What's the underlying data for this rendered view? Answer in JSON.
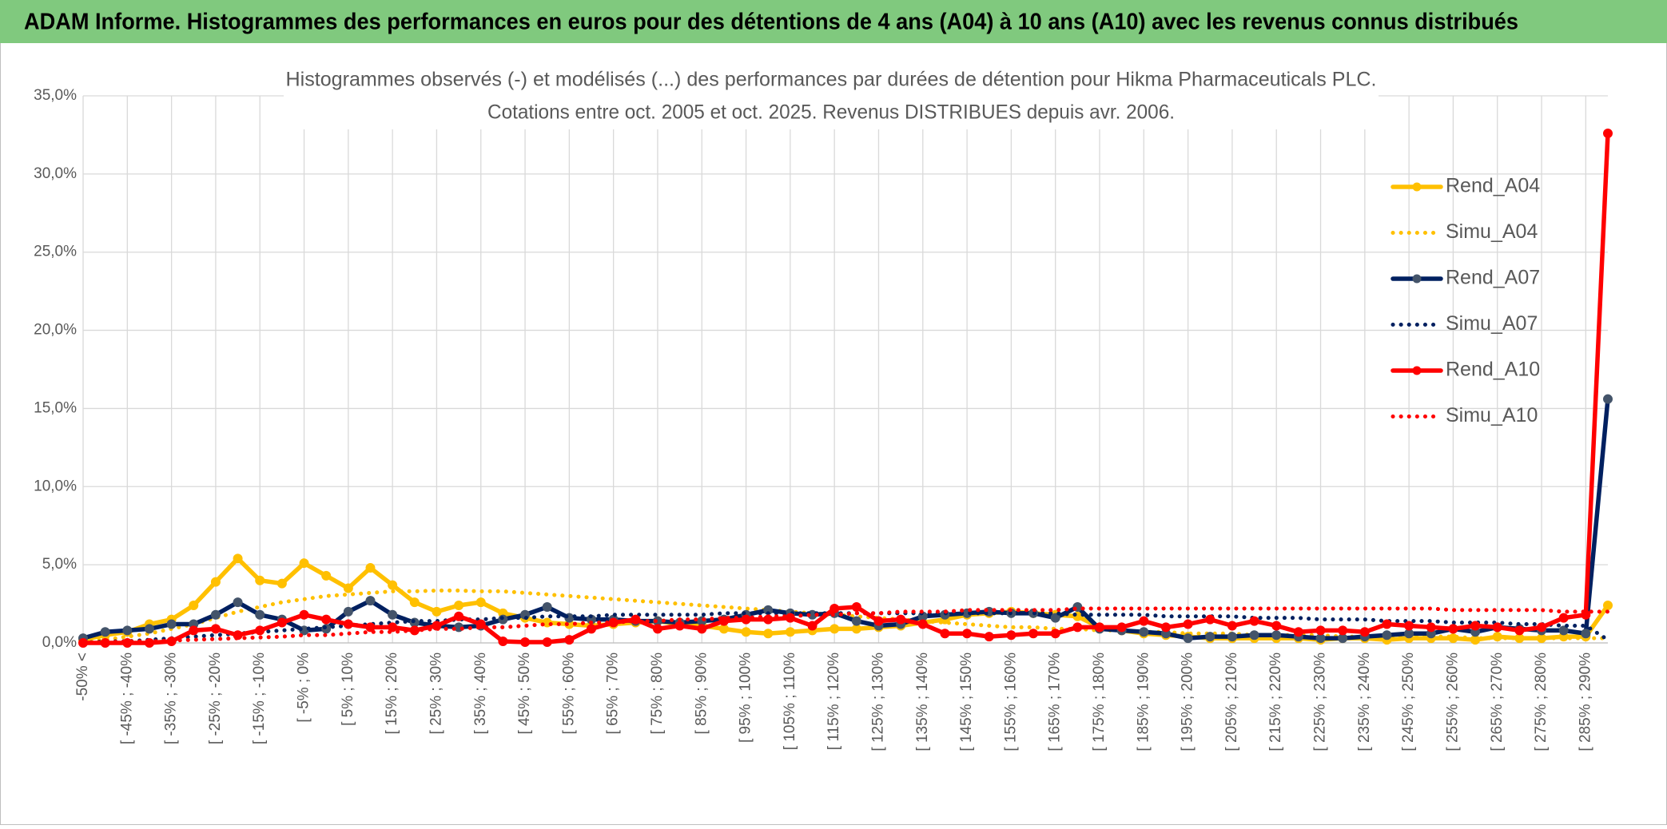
{
  "header": {
    "title": "ADAM Informe. Histogrammes des performances en euros pour des détentions de 4 ans (A04) à 10 ans (A10) avec les revenus connus distribués"
  },
  "chart_data": {
    "type": "line",
    "title": "Histogrammes observés (-) et modélisés (...) des performances par durées de détention pour Hikma Pharmaceuticals PLC.",
    "subtitle": "Cotations entre oct. 2005 et oct. 2025. Revenus DISTRIBUES depuis avr. 2006.",
    "categories": [
      "-50% <",
      null,
      "[ -45% ; -40%",
      null,
      "[ -35% ; -30%",
      null,
      "[ -25% ; -20%",
      null,
      "[ -15% ; -10%",
      null,
      "[ -5% ; 0%",
      null,
      "[ 5% ; 10%",
      null,
      "[ 15% ; 20%",
      null,
      "[ 25% ; 30%",
      null,
      "[ 35% ; 40%",
      null,
      "[ 45% ; 50%",
      null,
      "[ 55% ; 60%",
      null,
      "[ 65% ; 70%",
      null,
      "[ 75% ; 80%",
      null,
      "[ 85% ; 90%",
      null,
      "[ 95% ; 100%",
      null,
      "[ 105% ; 110%",
      null,
      "[ 115% ; 120%",
      null,
      "[ 125% ; 130%",
      null,
      "[ 135% ; 140%",
      null,
      "[ 145% ; 150%",
      null,
      "[ 155% ; 160%",
      null,
      "[ 165% ; 170%",
      null,
      "[ 175% ; 180%",
      null,
      "[ 185% ; 190%",
      null,
      "[ 195% ; 200%",
      null,
      "[ 205% ; 210%",
      null,
      "[ 215% ; 220%",
      null,
      "[ 225% ; 230%",
      null,
      "[ 235% ; 240%",
      null,
      "[ 245% ; 250%",
      null,
      "[ 255% ; 260%",
      null,
      "[ 265% ; 270%",
      null,
      "[ 275% ; 280%",
      null,
      "[ 285% ; 290%",
      null
    ],
    "series": [
      {
        "name": "Rend_A04",
        "color": "#FFC000",
        "marker_color": "#FFC000",
        "style": "solid",
        "marker": true,
        "values": [
          0.2,
          0.5,
          0.7,
          1.2,
          1.5,
          2.4,
          3.9,
          5.4,
          4.0,
          3.8,
          5.1,
          4.3,
          3.5,
          4.8,
          3.7,
          2.6,
          2.0,
          2.4,
          2.6,
          1.9,
          1.6,
          1.3,
          1.2,
          1.1,
          1.2,
          1.3,
          1.4,
          1.2,
          1.1,
          0.9,
          0.7,
          0.6,
          0.7,
          0.8,
          0.9,
          0.9,
          1.0,
          1.1,
          1.3,
          1.5,
          1.8,
          1.9,
          2.0,
          1.9,
          1.8,
          1.7,
          1.0,
          0.8,
          0.6,
          0.5,
          0.4,
          0.3,
          0.3,
          0.3,
          0.3,
          0.3,
          0.2,
          0.3,
          0.3,
          0.2,
          0.3,
          0.3,
          0.3,
          0.2,
          0.4,
          0.3,
          0.3,
          0.4,
          0.4,
          2.4
        ]
      },
      {
        "name": "Simu_A04",
        "color": "#FFC000",
        "style": "dotted",
        "marker": false,
        "values": [
          0.1,
          0.2,
          0.4,
          0.6,
          0.9,
          1.2,
          1.6,
          2.0,
          2.3,
          2.6,
          2.8,
          3.0,
          3.1,
          3.2,
          3.3,
          3.3,
          3.35,
          3.35,
          3.3,
          3.3,
          3.2,
          3.1,
          3.0,
          2.9,
          2.8,
          2.7,
          2.6,
          2.5,
          2.4,
          2.3,
          2.2,
          2.1,
          2.0,
          1.9,
          1.8,
          1.7,
          1.6,
          1.5,
          1.4,
          1.3,
          1.2,
          1.1,
          1.0,
          1.0,
          0.9,
          0.9,
          0.8,
          0.8,
          0.7,
          0.7,
          0.6,
          0.6,
          0.6,
          0.5,
          0.5,
          0.5,
          0.5,
          0.4,
          0.4,
          0.4,
          0.4,
          0.4,
          0.4,
          0.3,
          0.3,
          0.3,
          0.3,
          0.3,
          0.3,
          0.3
        ]
      },
      {
        "name": "Rend_A07",
        "color": "#002060",
        "marker_color": "#44546A",
        "style": "solid",
        "marker": true,
        "values": [
          0.3,
          0.7,
          0.8,
          0.9,
          1.2,
          1.2,
          1.8,
          2.6,
          1.8,
          1.5,
          0.8,
          0.9,
          2.0,
          2.7,
          1.8,
          1.3,
          1.1,
          1.0,
          1.1,
          1.5,
          1.8,
          2.3,
          1.6,
          1.5,
          1.5,
          1.4,
          1.4,
          1.3,
          1.4,
          1.5,
          1.8,
          2.1,
          1.9,
          1.8,
          1.9,
          1.4,
          1.1,
          1.2,
          1.7,
          1.8,
          1.9,
          2.0,
          1.9,
          1.9,
          1.6,
          2.3,
          0.9,
          0.8,
          0.7,
          0.6,
          0.3,
          0.4,
          0.4,
          0.5,
          0.5,
          0.4,
          0.3,
          0.3,
          0.4,
          0.5,
          0.6,
          0.6,
          0.9,
          0.7,
          1.0,
          0.9,
          0.8,
          0.8,
          0.6,
          15.6
        ]
      },
      {
        "name": "Simu_A07",
        "color": "#002060",
        "style": "dotted",
        "marker": false,
        "values": [
          0.0,
          0.1,
          0.1,
          0.2,
          0.3,
          0.4,
          0.5,
          0.6,
          0.7,
          0.8,
          0.9,
          1.0,
          1.1,
          1.2,
          1.3,
          1.4,
          1.4,
          1.5,
          1.5,
          1.6,
          1.6,
          1.7,
          1.7,
          1.7,
          1.8,
          1.8,
          1.8,
          1.8,
          1.8,
          1.9,
          1.9,
          1.9,
          1.9,
          1.9,
          1.9,
          1.9,
          1.9,
          1.9,
          1.9,
          1.9,
          1.9,
          1.9,
          1.9,
          1.9,
          1.9,
          1.8,
          1.8,
          1.8,
          1.8,
          1.7,
          1.7,
          1.7,
          1.7,
          1.6,
          1.6,
          1.6,
          1.5,
          1.5,
          1.5,
          1.4,
          1.4,
          1.4,
          1.3,
          1.3,
          1.3,
          1.2,
          1.2,
          1.1,
          1.1,
          0.2
        ]
      },
      {
        "name": "Rend_A10",
        "color": "#FF0000",
        "marker_color": "#FF0000",
        "style": "solid",
        "marker": true,
        "values": [
          0.0,
          0.0,
          0.0,
          0.0,
          0.1,
          0.8,
          0.9,
          0.5,
          0.8,
          1.3,
          1.8,
          1.5,
          1.2,
          1.0,
          1.0,
          0.8,
          1.1,
          1.7,
          1.2,
          0.1,
          0.05,
          0.05,
          0.2,
          0.9,
          1.3,
          1.5,
          0.9,
          1.1,
          0.9,
          1.4,
          1.5,
          1.5,
          1.6,
          1.1,
          2.2,
          2.3,
          1.4,
          1.5,
          1.2,
          0.6,
          0.6,
          0.4,
          0.5,
          0.6,
          0.6,
          1.0,
          1.0,
          1.0,
          1.4,
          1.0,
          1.2,
          1.5,
          1.1,
          1.4,
          1.1,
          0.7,
          0.8,
          0.8,
          0.7,
          1.2,
          1.1,
          1.0,
          0.9,
          1.1,
          1.0,
          0.8,
          1.0,
          1.6,
          1.8,
          32.6
        ]
      },
      {
        "name": "Simu_A10",
        "color": "#FF0000",
        "style": "dotted",
        "marker": false,
        "values": [
          0.0,
          0.05,
          0.1,
          0.1,
          0.15,
          0.2,
          0.25,
          0.3,
          0.35,
          0.4,
          0.5,
          0.5,
          0.6,
          0.7,
          0.7,
          0.8,
          0.9,
          0.9,
          1.0,
          1.0,
          1.1,
          1.2,
          1.2,
          1.3,
          1.3,
          1.4,
          1.4,
          1.5,
          1.5,
          1.6,
          1.6,
          1.7,
          1.7,
          1.8,
          1.8,
          1.9,
          1.9,
          2.0,
          2.0,
          2.0,
          2.1,
          2.1,
          2.1,
          2.1,
          2.1,
          2.2,
          2.2,
          2.2,
          2.2,
          2.2,
          2.2,
          2.2,
          2.2,
          2.2,
          2.2,
          2.2,
          2.2,
          2.2,
          2.2,
          2.2,
          2.2,
          2.2,
          2.1,
          2.1,
          2.1,
          2.1,
          2.1,
          2.0,
          2.0,
          2.0
        ]
      }
    ],
    "ylim": [
      0,
      35
    ],
    "yticks": [
      {
        "value": 0,
        "label": "0,0%"
      },
      {
        "value": 5,
        "label": "5,0%"
      },
      {
        "value": 10,
        "label": "10,0%"
      },
      {
        "value": 15,
        "label": "15,0%"
      },
      {
        "value": 20,
        "label": "20,0%"
      },
      {
        "value": 25,
        "label": "25,0%"
      },
      {
        "value": 30,
        "label": "30,0%"
      },
      {
        "value": 35,
        "label": "35,0%"
      }
    ],
    "grid": true,
    "legend": "right"
  }
}
